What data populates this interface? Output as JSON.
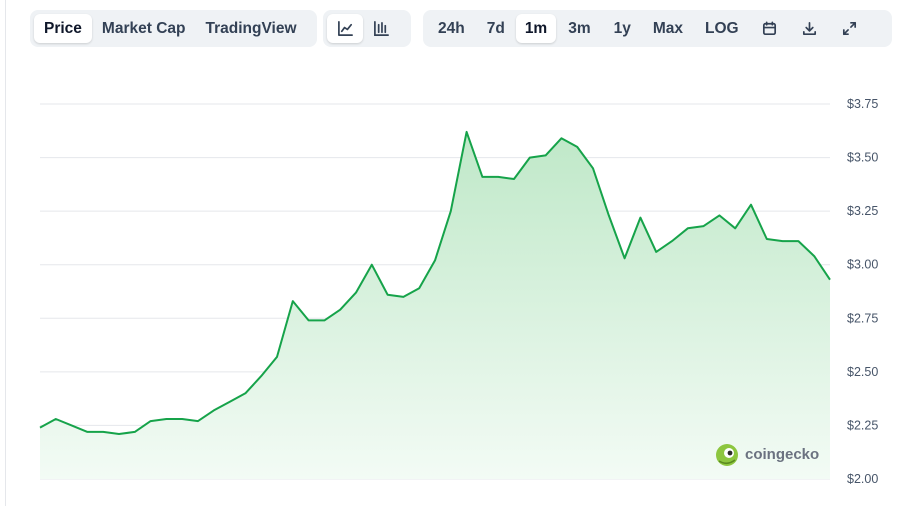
{
  "toolbar": {
    "view_tabs": [
      {
        "label": "Price",
        "active": true
      },
      {
        "label": "Market Cap",
        "active": false
      },
      {
        "label": "TradingView",
        "active": false
      }
    ],
    "chart_style_buttons": [
      {
        "icon": "line-chart-icon",
        "active": true
      },
      {
        "icon": "candlestick-icon",
        "active": false
      }
    ],
    "ranges": [
      {
        "label": "24h",
        "active": false
      },
      {
        "label": "7d",
        "active": false
      },
      {
        "label": "1m",
        "active": true
      },
      {
        "label": "3m",
        "active": false
      },
      {
        "label": "1y",
        "active": false
      },
      {
        "label": "Max",
        "active": false
      },
      {
        "label": "LOG",
        "active": false
      }
    ],
    "tool_icons": [
      "calendar-icon",
      "download-icon",
      "fullscreen-icon"
    ]
  },
  "watermark": {
    "text": "coingecko",
    "icon": "coingecko-logo-icon"
  },
  "colors": {
    "line": "#16a34a",
    "fill_top": "#bfe8c8",
    "fill_bottom": "#f3fbf5",
    "grid": "#e5e7eb",
    "tab_bg": "#eff2f5"
  },
  "chart_data": {
    "type": "area",
    "y_ticks": [
      "$3.75",
      "$3.50",
      "$3.25",
      "$3.00",
      "$2.75",
      "$2.50",
      "$2.25",
      "$2.00"
    ],
    "y_tick_values": [
      3.75,
      3.5,
      3.25,
      3.0,
      2.75,
      2.5,
      2.25,
      2.0
    ],
    "ylim": [
      2.0,
      3.75
    ],
    "grid": true,
    "x_index_range": [
      0,
      100
    ],
    "series": [
      {
        "x": [
          0,
          2,
          4,
          6,
          8,
          10,
          12,
          14,
          16,
          18,
          20,
          22,
          24,
          26,
          28,
          30,
          32,
          34,
          36,
          38,
          40,
          42,
          44,
          46,
          48,
          50,
          52,
          54,
          56,
          58,
          60,
          62,
          64,
          66,
          68,
          70,
          72,
          74,
          76,
          78,
          80,
          82,
          84,
          86,
          88,
          90,
          92,
          94,
          96,
          98,
          100
        ],
        "values": [
          2.24,
          2.28,
          2.25,
          2.22,
          2.22,
          2.21,
          2.22,
          2.27,
          2.28,
          2.28,
          2.27,
          2.32,
          2.36,
          2.4,
          2.48,
          2.57,
          2.83,
          2.74,
          2.74,
          2.79,
          2.87,
          3.0,
          2.86,
          2.85,
          2.89,
          3.02,
          3.25,
          3.62,
          3.41,
          3.41,
          3.4,
          3.5,
          3.51,
          3.59,
          3.55,
          3.45,
          3.23,
          3.03,
          3.22,
          3.06,
          3.11,
          3.17,
          3.18,
          3.23,
          3.17,
          3.28,
          3.12,
          3.11,
          3.11,
          3.04,
          2.93
        ]
      }
    ]
  }
}
